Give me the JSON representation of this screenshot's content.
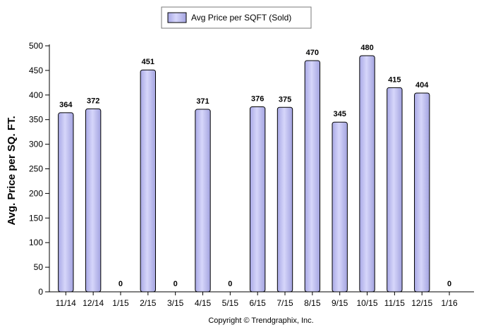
{
  "chart_data": {
    "type": "bar",
    "categories": [
      "11/14",
      "12/14",
      "1/15",
      "2/15",
      "3/15",
      "4/15",
      "5/15",
      "6/15",
      "7/15",
      "8/15",
      "9/15",
      "10/15",
      "11/15",
      "12/15",
      "1/16"
    ],
    "series": [
      {
        "name": "Avg Price per SQFT (Sold)",
        "values": [
          364,
          372,
          0,
          451,
          0,
          371,
          0,
          376,
          375,
          470,
          345,
          480,
          415,
          404,
          0
        ]
      }
    ],
    "data_labels": [
      "364",
      "372",
      "0",
      "451",
      "0",
      "371",
      "0",
      "376",
      "375",
      "470",
      "345",
      "480",
      "415",
      "404",
      "0"
    ],
    "ylabel": "Avg. Price per SQ. FT.",
    "xlabel": "",
    "ylim": [
      0,
      500
    ],
    "yticks": [
      0,
      50,
      100,
      150,
      200,
      250,
      300,
      350,
      400,
      450,
      500
    ],
    "grid": false,
    "legend_position": "top-center",
    "bar_fill": "#c3c3f0",
    "bar_stroke": "#000000"
  },
  "copyright": "Copyright © Trendgraphix, Inc."
}
